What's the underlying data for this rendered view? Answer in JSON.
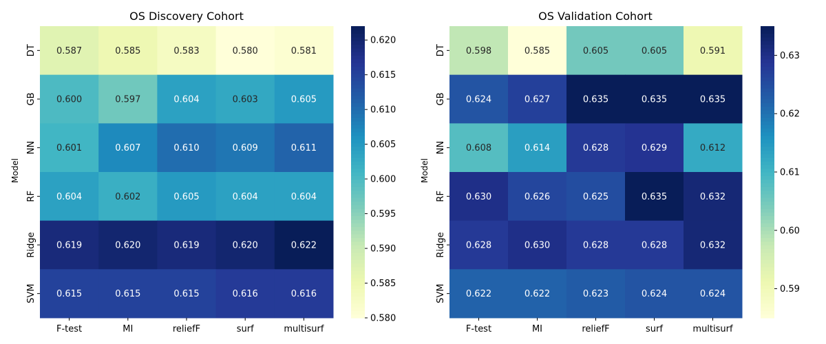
{
  "colors": {
    "ylgnbu": [
      "#ffffd9",
      "#edf8b1",
      "#c7e9b4",
      "#7fcdbb",
      "#41b6c4",
      "#1d91c0",
      "#225ea8",
      "#253494",
      "#081d58"
    ],
    "text_dark": "#262626",
    "text_light": "#ffffff"
  },
  "chart_data": [
    {
      "type": "heatmap",
      "title": "OS Discovery Cohort",
      "xlabel": "",
      "ylabel": "Model",
      "x_categories": [
        "F-test",
        "MI",
        "reliefF",
        "surf",
        "multisurf"
      ],
      "y_categories": [
        "DT",
        "GB",
        "NN",
        "RF",
        "Ridge",
        "SVM"
      ],
      "values": [
        [
          0.587,
          0.585,
          0.583,
          0.58,
          0.581
        ],
        [
          0.6,
          0.597,
          0.604,
          0.603,
          0.605
        ],
        [
          0.601,
          0.607,
          0.61,
          0.609,
          0.611
        ],
        [
          0.604,
          0.602,
          0.605,
          0.604,
          0.604
        ],
        [
          0.619,
          0.62,
          0.619,
          0.62,
          0.622
        ],
        [
          0.615,
          0.615,
          0.615,
          0.616,
          0.616
        ]
      ],
      "labels": [
        [
          "0.587",
          "0.585",
          "0.583",
          "0.580",
          "0.581"
        ],
        [
          "0.600",
          "0.597",
          "0.604",
          "0.603",
          "0.605"
        ],
        [
          "0.601",
          "0.607",
          "0.610",
          "0.609",
          "0.611"
        ],
        [
          "0.604",
          "0.602",
          "0.605",
          "0.604",
          "0.604"
        ],
        [
          "0.619",
          "0.620",
          "0.619",
          "0.620",
          "0.622"
        ],
        [
          "0.615",
          "0.615",
          "0.615",
          "0.616",
          "0.616"
        ]
      ],
      "colorbar": {
        "range": [
          0.58,
          0.622
        ],
        "ticks": [
          0.58,
          0.585,
          0.59,
          0.595,
          0.6,
          0.605,
          0.61,
          0.615,
          0.62
        ],
        "tick_labels": [
          "0.580",
          "0.585",
          "0.590",
          "0.595",
          "0.600",
          "0.605",
          "0.610",
          "0.615",
          "0.620"
        ]
      },
      "colormap": "YlGnBu"
    },
    {
      "type": "heatmap",
      "title": "OS Validation Cohort",
      "xlabel": "",
      "ylabel": "Model",
      "x_categories": [
        "F-test",
        "MI",
        "reliefF",
        "surf",
        "multisurf"
      ],
      "y_categories": [
        "DT",
        "GB",
        "NN",
        "RF",
        "Ridge",
        "SVM"
      ],
      "values": [
        [
          0.598,
          0.585,
          0.605,
          0.605,
          0.591
        ],
        [
          0.624,
          0.627,
          0.635,
          0.635,
          0.635
        ],
        [
          0.608,
          0.614,
          0.628,
          0.629,
          0.612
        ],
        [
          0.63,
          0.626,
          0.625,
          0.635,
          0.632
        ],
        [
          0.628,
          0.63,
          0.628,
          0.628,
          0.632
        ],
        [
          0.622,
          0.622,
          0.623,
          0.624,
          0.624
        ]
      ],
      "labels": [
        [
          "0.598",
          "0.585",
          "0.605",
          "0.605",
          "0.591"
        ],
        [
          "0.624",
          "0.627",
          "0.635",
          "0.635",
          "0.635"
        ],
        [
          "0.608",
          "0.614",
          "0.628",
          "0.629",
          "0.612"
        ],
        [
          "0.630",
          "0.626",
          "0.625",
          "0.635",
          "0.632"
        ],
        [
          "0.628",
          "0.630",
          "0.628",
          "0.628",
          "0.632"
        ],
        [
          "0.622",
          "0.622",
          "0.623",
          "0.624",
          "0.624"
        ]
      ],
      "colorbar": {
        "range": [
          0.585,
          0.635
        ],
        "ticks": [
          0.59,
          0.6,
          0.61,
          0.62,
          0.63
        ],
        "tick_labels": [
          "0.59",
          "0.60",
          "0.61",
          "0.62",
          "0.63"
        ]
      },
      "colormap": "YlGnBu"
    }
  ]
}
